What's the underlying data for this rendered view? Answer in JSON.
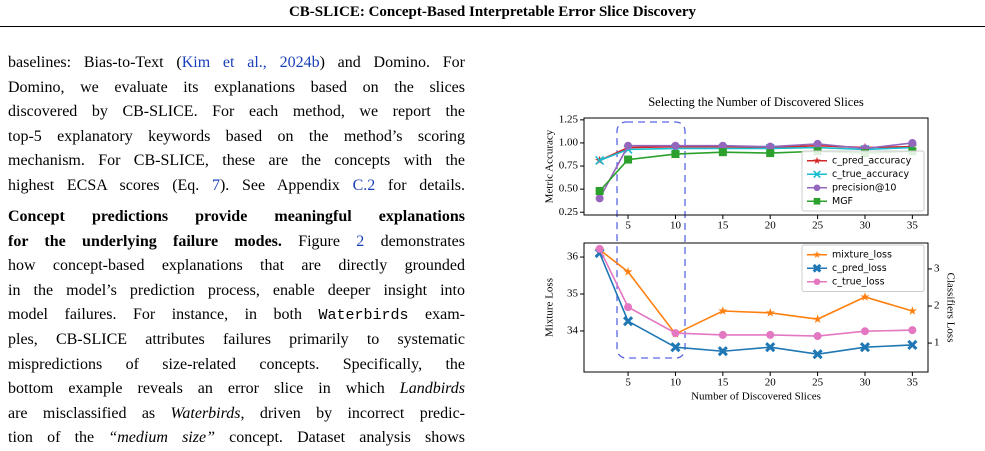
{
  "header": {
    "title": "CB-SLICE: Concept-Based Interpretable Error Slice Discovery"
  },
  "body": {
    "lines": [
      [
        "baselines: Bias-to-Text (",
        "Kim et al., 2024b",
        ") and Domino. For"
      ],
      [
        "Domino, we evaluate its explanations based on the slices"
      ],
      [
        "discovered by CB-SLICE. For each method, we report the"
      ],
      [
        "top-5 explanatory keywords based on the method’s scoring"
      ],
      [
        "mechanism. For CB-SLICE, these are the concepts with the"
      ],
      [
        "highest ECSA scores (Eq. ",
        "7",
        "). See Appendix ",
        "C.2",
        " for details."
      ],
      [
        "Concept predictions provide meaningful explanations"
      ],
      [
        "for the underlying failure modes.",
        " Figure ",
        "2",
        " demonstrates"
      ],
      [
        "how concept-based explanations that are directly grounded"
      ],
      [
        "in the model’s prediction process, enable deeper insight into"
      ],
      [
        "model failures. For instance, in both ",
        "Waterbirds",
        " exam-"
      ],
      [
        "ples, CB-SLICE attributes failures primarily to systematic"
      ],
      [
        "mispredictions of size-related concepts. Specifically, the"
      ],
      [
        "bottom example reveals an error slice in which ",
        "Landbirds"
      ],
      [
        "are misclassified as ",
        "Waterbirds",
        ", driven by incorrect predic-"
      ],
      [
        "tion of the ",
        "“medium size”",
        " concept. Dataset analysis shows"
      ]
    ]
  },
  "chart_data": [
    {
      "type": "line",
      "title": "Selecting the Number of Discovered Slices",
      "ylabel": "Metric Accuracy",
      "x": [
        2,
        5,
        10,
        15,
        20,
        25,
        30,
        35
      ],
      "xlim": [
        0.35,
        36.65
      ],
      "xticks": [
        5,
        10,
        15,
        20,
        25,
        30,
        35
      ],
      "ylim": [
        0.22,
        1.27
      ],
      "yticks": [
        0.25,
        {
          "value": 0.5,
          "label": "0.50"
        },
        0.75,
        {
          "value": 1.0,
          "label": "1.00"
        },
        1.25
      ],
      "legend": "lower right",
      "series": [
        {
          "name": "c_pred_accuracy",
          "color": "#d62728",
          "marker": "star",
          "values": [
            0.81,
            0.95,
            0.96,
            0.96,
            0.95,
            0.97,
            0.95,
            0.96
          ]
        },
        {
          "name": "c_true_accuracy",
          "color": "#17becf",
          "marker": "x",
          "values": [
            0.81,
            0.93,
            0.94,
            0.94,
            0.94,
            0.95,
            0.93,
            0.95
          ]
        },
        {
          "name": "precision@10",
          "color": "#9467bd",
          "marker": "circle",
          "values": [
            0.4,
            0.97,
            0.97,
            0.97,
            0.96,
            0.99,
            0.94,
            1.0
          ]
        },
        {
          "name": "MGF",
          "color": "#2ca02c",
          "marker": "square",
          "values": [
            0.48,
            0.82,
            0.88,
            0.9,
            0.89,
            0.91,
            0.89,
            0.91
          ]
        }
      ]
    },
    {
      "type": "line",
      "xlabel": "Number of Discovered Slices",
      "ylabel": "Mixture Loss",
      "y2label": "Classifiers Loss",
      "x": [
        2,
        5,
        10,
        15,
        20,
        25,
        30,
        35
      ],
      "xlim": [
        0.35,
        36.65
      ],
      "xticks": [
        5,
        10,
        15,
        20,
        25,
        30,
        35
      ],
      "ylim": [
        32.89,
        36.38
      ],
      "yticks": [
        34,
        35,
        36
      ],
      "y2lim": [
        0.22,
        3.7
      ],
      "y2ticks": [
        1,
        2,
        3
      ],
      "legend": "upper right",
      "series": [
        {
          "name": "mixture_loss",
          "color": "#ff7f0e",
          "marker": "star",
          "values": [
            36.2,
            35.6,
            33.92,
            34.54,
            34.49,
            34.32,
            34.92,
            34.54
          ]
        },
        {
          "name": "c_pred_loss",
          "color": "#1f77b4",
          "marker": "X",
          "axis": "y2",
          "values": [
            3.43,
            1.59,
            0.89,
            0.78,
            0.89,
            0.7,
            0.89,
            0.95
          ]
        },
        {
          "name": "c_true_loss",
          "color": "#e377c2",
          "marker": "circle",
          "axis": "y2",
          "values": [
            3.54,
            1.97,
            1.27,
            1.22,
            1.22,
            1.19,
            1.32,
            1.35
          ]
        }
      ]
    }
  ]
}
